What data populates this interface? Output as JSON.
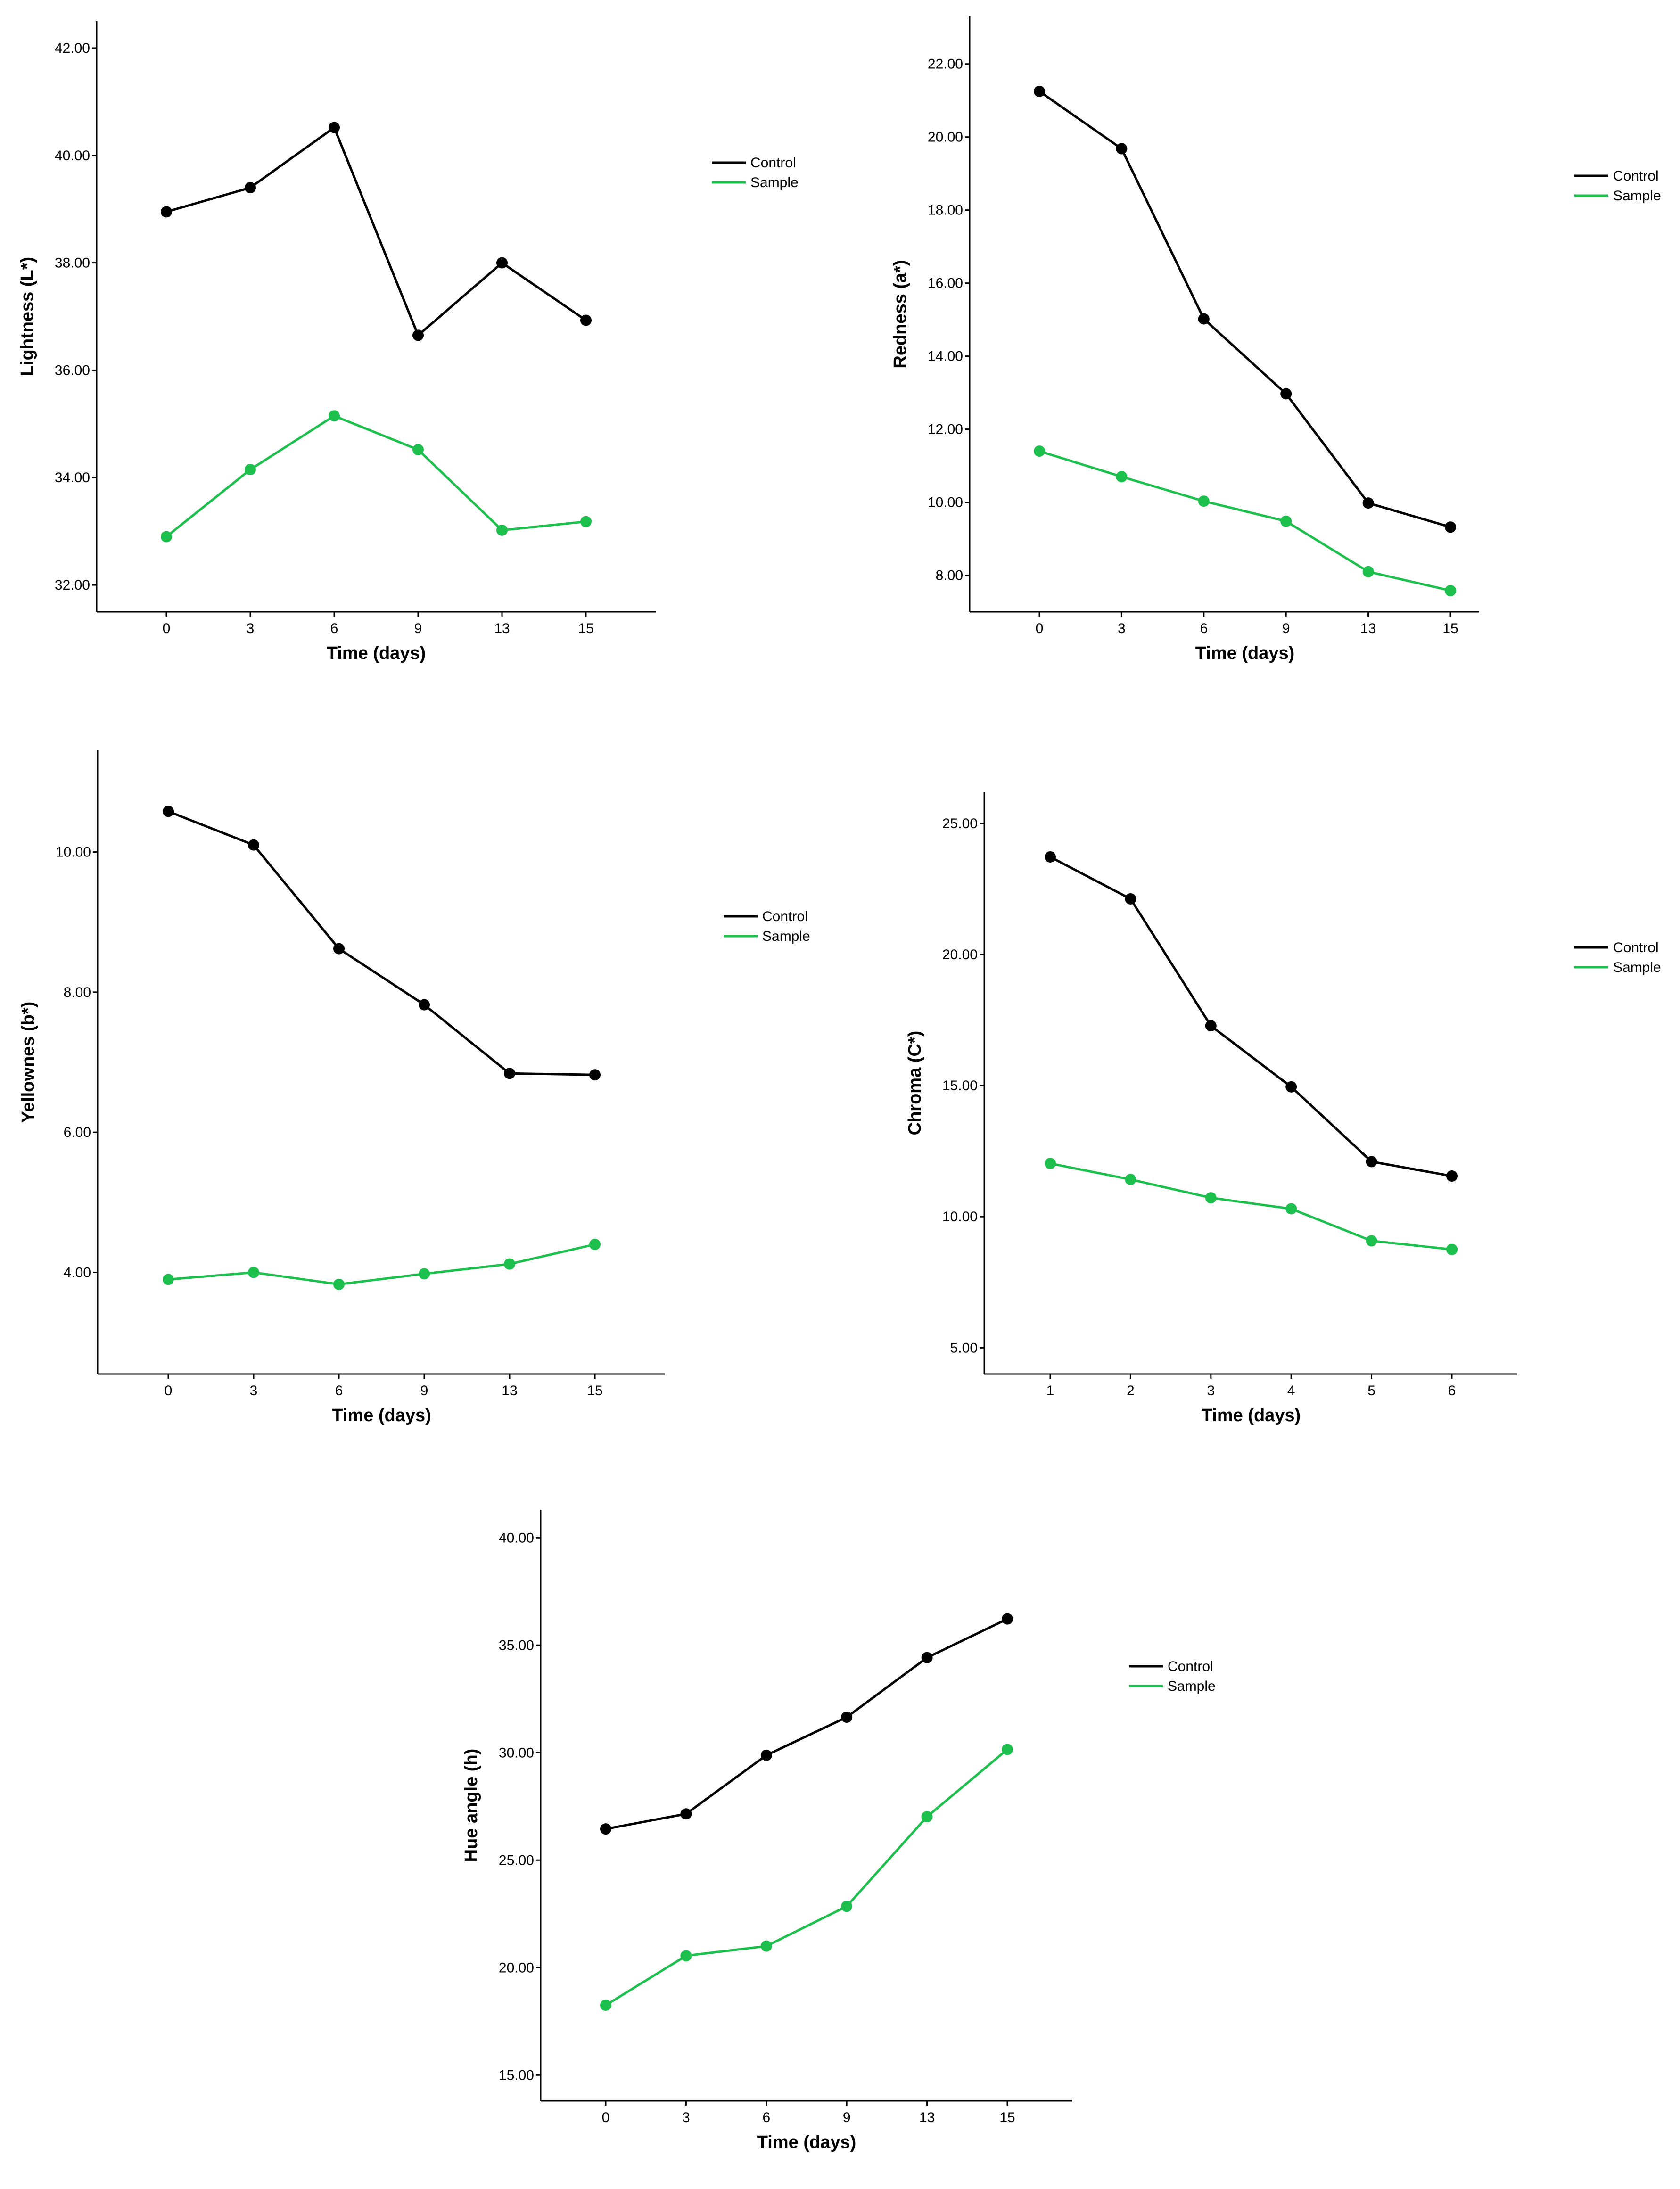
{
  "colors": {
    "control": "#000000",
    "sample": "#1dc04d",
    "axis": "#000000",
    "background": "#ffffff"
  },
  "legend": {
    "items": [
      "Control",
      "Sample"
    ],
    "placement": "right"
  },
  "chart_data": [
    {
      "id": "lightness",
      "type": "line",
      "title": "",
      "xlabel": "Time (days)",
      "ylabel": "Lightness (L*)",
      "categories": [
        "0",
        "3",
        "6",
        "9",
        "13",
        "15"
      ],
      "yticks": [
        "32.00",
        "34.00",
        "36.00",
        "38.00",
        "40.00",
        "42.00"
      ],
      "ylim": [
        31.5,
        42.5
      ],
      "grid": false,
      "series": [
        {
          "name": "Control",
          "values": [
            38.95,
            39.4,
            40.52,
            36.65,
            38.0,
            36.93
          ]
        },
        {
          "name": "Sample",
          "values": [
            32.9,
            34.15,
            35.15,
            34.52,
            33.02,
            33.18
          ]
        }
      ]
    },
    {
      "id": "redness",
      "type": "line",
      "title": "",
      "xlabel": "Time (days)",
      "ylabel": "Redness (a*)",
      "categories": [
        "0",
        "3",
        "6",
        "9",
        "13",
        "15"
      ],
      "yticks": [
        "8.00",
        "10.00",
        "12.00",
        "14.00",
        "16.00",
        "18.00",
        "20.00",
        "22.00"
      ],
      "ylim": [
        7.0,
        23.3
      ],
      "grid": false,
      "series": [
        {
          "name": "Control",
          "values": [
            21.25,
            19.68,
            15.02,
            12.97,
            9.98,
            9.32
          ]
        },
        {
          "name": "Sample",
          "values": [
            11.4,
            10.7,
            10.03,
            9.48,
            8.1,
            7.58
          ]
        }
      ]
    },
    {
      "id": "yellowness",
      "type": "line",
      "title": "",
      "xlabel": "Time (days)",
      "ylabel": "Yellownes (b*)",
      "categories": [
        "0",
        "3",
        "6",
        "9",
        "13",
        "15"
      ],
      "yticks": [
        "4.00",
        "6.00",
        "8.00",
        "10.00"
      ],
      "ylim": [
        2.55,
        11.45
      ],
      "grid": false,
      "series": [
        {
          "name": "Control",
          "values": [
            10.58,
            10.1,
            8.62,
            7.82,
            6.84,
            6.82
          ]
        },
        {
          "name": "Sample",
          "values": [
            3.9,
            4.0,
            3.83,
            3.98,
            4.12,
            4.4
          ]
        }
      ]
    },
    {
      "id": "chroma",
      "type": "line",
      "title": "",
      "xlabel": "Time (days)",
      "ylabel": "Chroma (C*)",
      "categories": [
        "1",
        "2",
        "3",
        "4",
        "5",
        "6"
      ],
      "yticks": [
        "5.00",
        "10.00",
        "15.00",
        "20.00",
        "25.00"
      ],
      "ylim": [
        4.0,
        26.2
      ],
      "grid": false,
      "series": [
        {
          "name": "Control",
          "values": [
            23.72,
            22.12,
            17.28,
            14.95,
            12.1,
            11.55
          ]
        },
        {
          "name": "Sample",
          "values": [
            12.03,
            11.42,
            10.72,
            10.3,
            9.08,
            8.75
          ]
        }
      ]
    },
    {
      "id": "hue",
      "type": "line",
      "title": "",
      "xlabel": "Time (days)",
      "ylabel": "Hue angle (h)",
      "categories": [
        "0",
        "3",
        "6",
        "9",
        "13",
        "15"
      ],
      "yticks": [
        "15.00",
        "20.00",
        "25.00",
        "30.00",
        "35.00",
        "40.00"
      ],
      "ylim": [
        13.8,
        41.3
      ],
      "grid": false,
      "series": [
        {
          "name": "Control",
          "values": [
            26.45,
            27.15,
            29.88,
            31.65,
            34.42,
            36.22
          ]
        },
        {
          "name": "Sample",
          "values": [
            18.25,
            20.55,
            21.0,
            22.85,
            27.02,
            30.15
          ]
        }
      ]
    }
  ]
}
